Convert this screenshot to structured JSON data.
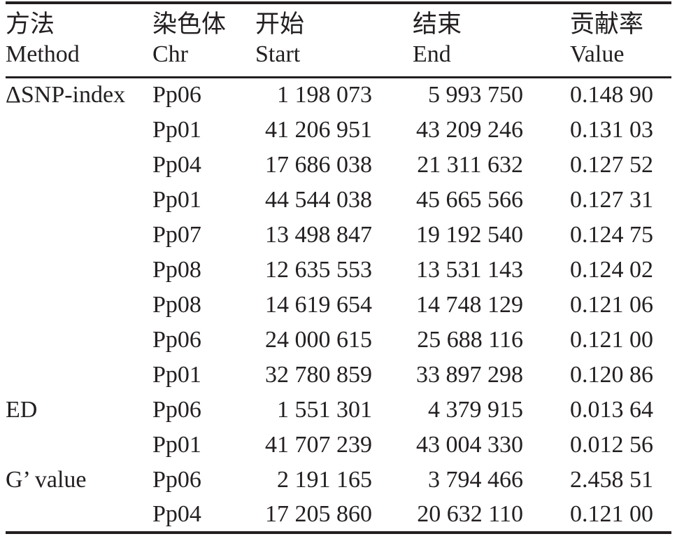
{
  "table": {
    "colors": {
      "text": "#231f20",
      "rule": "#231f20",
      "background": "#ffffff"
    },
    "columns": [
      {
        "zh": "方法",
        "en": "Method"
      },
      {
        "zh": "染色体",
        "en": "Chr"
      },
      {
        "zh": "开始",
        "en": "Start"
      },
      {
        "zh": "结束",
        "en": "End"
      },
      {
        "zh": "贡献率",
        "en": "Value"
      }
    ],
    "rows": [
      {
        "method": "ΔSNP-index",
        "chr": "Pp06",
        "start": "1 198 073",
        "end": "5 993 750",
        "value": "0.148 90"
      },
      {
        "method": "",
        "chr": "Pp01",
        "start": "41 206 951",
        "end": "43 209 246",
        "value": "0.131 03"
      },
      {
        "method": "",
        "chr": "Pp04",
        "start": "17 686 038",
        "end": "21 311 632",
        "value": "0.127 52"
      },
      {
        "method": "",
        "chr": "Pp01",
        "start": "44 544 038",
        "end": "45 665 566",
        "value": "0.127 31"
      },
      {
        "method": "",
        "chr": "Pp07",
        "start": "13 498 847",
        "end": "19 192 540",
        "value": "0.124 75"
      },
      {
        "method": "",
        "chr": "Pp08",
        "start": "12 635 553",
        "end": "13 531 143",
        "value": "0.124 02"
      },
      {
        "method": "",
        "chr": "Pp08",
        "start": "14 619 654",
        "end": "14 748 129",
        "value": "0.121 06"
      },
      {
        "method": "",
        "chr": "Pp06",
        "start": "24 000 615",
        "end": "25 688 116",
        "value": "0.121 00"
      },
      {
        "method": "",
        "chr": "Pp01",
        "start": "32 780 859",
        "end": "33 897 298",
        "value": "0.120 86"
      },
      {
        "method": "ED",
        "chr": "Pp06",
        "start": "1 551 301",
        "end": "4 379 915",
        "value": "0.013 64"
      },
      {
        "method": "",
        "chr": "Pp01",
        "start": "41 707 239",
        "end": "43 004 330",
        "value": "0.012 56"
      },
      {
        "method": "G’ value",
        "chr": "Pp06",
        "start": "2 191 165",
        "end": "3 794 466",
        "value": "2.458 51"
      },
      {
        "method": "",
        "chr": "Pp04",
        "start": "17 205 860",
        "end": "20 632 110",
        "value": "0.121 00"
      }
    ]
  }
}
